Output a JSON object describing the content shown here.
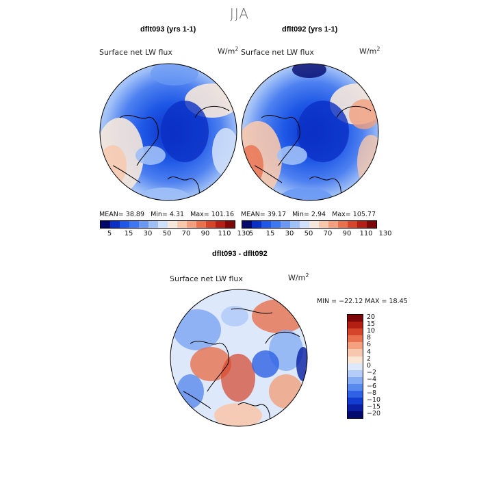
{
  "season": "JJA",
  "panels": [
    {
      "title": "dflt093 (yrs 1-1)",
      "variable": "Surface net LW flux",
      "units_base": "W/m",
      "units_exp": "2",
      "stats": {
        "mean_label": "MEAN=",
        "mean": "38.89",
        "min_label": "Min=",
        "min": "4.31",
        "max_label": "Max=",
        "max": "101.16"
      },
      "colorbar": {
        "colors": [
          "#02076b",
          "#0a2fc4",
          "#1f58e6",
          "#3d78f0",
          "#6b9af4",
          "#9fbff7",
          "#cfdff9",
          "#f6e8dc",
          "#f7c8ad",
          "#f2a07e",
          "#e8714f",
          "#d4452b",
          "#b31f12",
          "#7e0707"
        ],
        "ticks": [
          "5",
          "15",
          "30",
          "50",
          "70",
          "90",
          "110",
          "130"
        ]
      }
    },
    {
      "title": "dflt092 (yrs 1-1)",
      "variable": "Surface net LW flux",
      "units_base": "W/m",
      "units_exp": "2",
      "stats": {
        "mean_label": "MEAN=",
        "mean": "39.17",
        "min_label": "Min=",
        "min": "2.94",
        "max_label": "Max=",
        "max": "105.77"
      },
      "colorbar": {
        "colors": [
          "#02076b",
          "#0a2fc4",
          "#1f58e6",
          "#3d78f0",
          "#6b9af4",
          "#9fbff7",
          "#cfdff9",
          "#f6e8dc",
          "#f7c8ad",
          "#f2a07e",
          "#e8714f",
          "#d4452b",
          "#b31f12",
          "#7e0707"
        ],
        "ticks": [
          "5",
          "15",
          "30",
          "50",
          "70",
          "90",
          "110",
          "130"
        ]
      }
    }
  ],
  "diff": {
    "title": "dflt093 - dflt092",
    "variable": "Surface net LW flux",
    "units_base": "W/m",
    "units_exp": "2",
    "stats_text": "MIN = −22.12 MAX =  18.45",
    "colorbar": {
      "colors": [
        "#7e0707",
        "#b31f12",
        "#d4452b",
        "#e8714f",
        "#f2a07e",
        "#f7c8ad",
        "#fbe6d6",
        "#dde8fb",
        "#b4cdf8",
        "#86acf3",
        "#5a89ee",
        "#2f62e4",
        "#123dd0",
        "#0a1fa3",
        "#020a70"
      ],
      "ticks": [
        "20",
        "15",
        "10",
        "8",
        "6",
        "4",
        "2",
        "0",
        "−2",
        "−4",
        "−6",
        "−8",
        "−10",
        "−15",
        "−20"
      ]
    }
  }
}
